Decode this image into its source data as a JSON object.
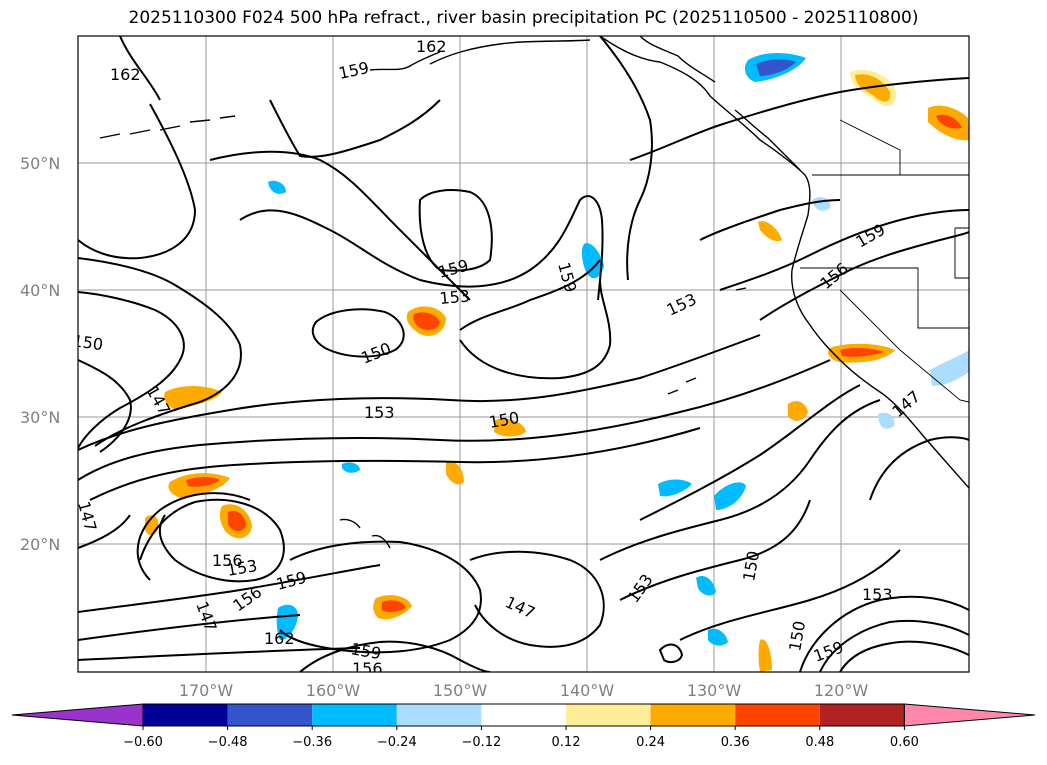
{
  "title": "2025110300 F024 500 hPa refract., river basin precipitation PC (2025110500 - 2025110800)",
  "map": {
    "lat_labels": [
      "50°N",
      "40°N",
      "30°N",
      "20°N"
    ],
    "lon_labels": [
      "170°W",
      "160°W",
      "150°W",
      "140°W",
      "130°W",
      "120°W"
    ],
    "contour_labels": [
      "162",
      "159",
      "162",
      "150",
      "147",
      "147",
      "159",
      "153",
      "150",
      "153",
      "159",
      "153",
      "156",
      "159",
      "147",
      "150",
      "156",
      "153",
      "156",
      "159",
      "147",
      "162",
      "159",
      "156",
      "147",
      "153",
      "150",
      "153",
      "159",
      "150"
    ]
  },
  "colorbar": {
    "ticks": [
      "−0.60",
      "−0.48",
      "−0.36",
      "−0.24",
      "−0.12",
      "0.12",
      "0.24",
      "0.36",
      "0.48",
      "0.60"
    ],
    "colors": [
      "#9933cc",
      "#000099",
      "#3355cc",
      "#00bbff",
      "#aaddff",
      "#ffffff",
      "#ffee99",
      "#ffaa00",
      "#ff4400",
      "#b22222",
      "#ff88aa"
    ]
  }
}
